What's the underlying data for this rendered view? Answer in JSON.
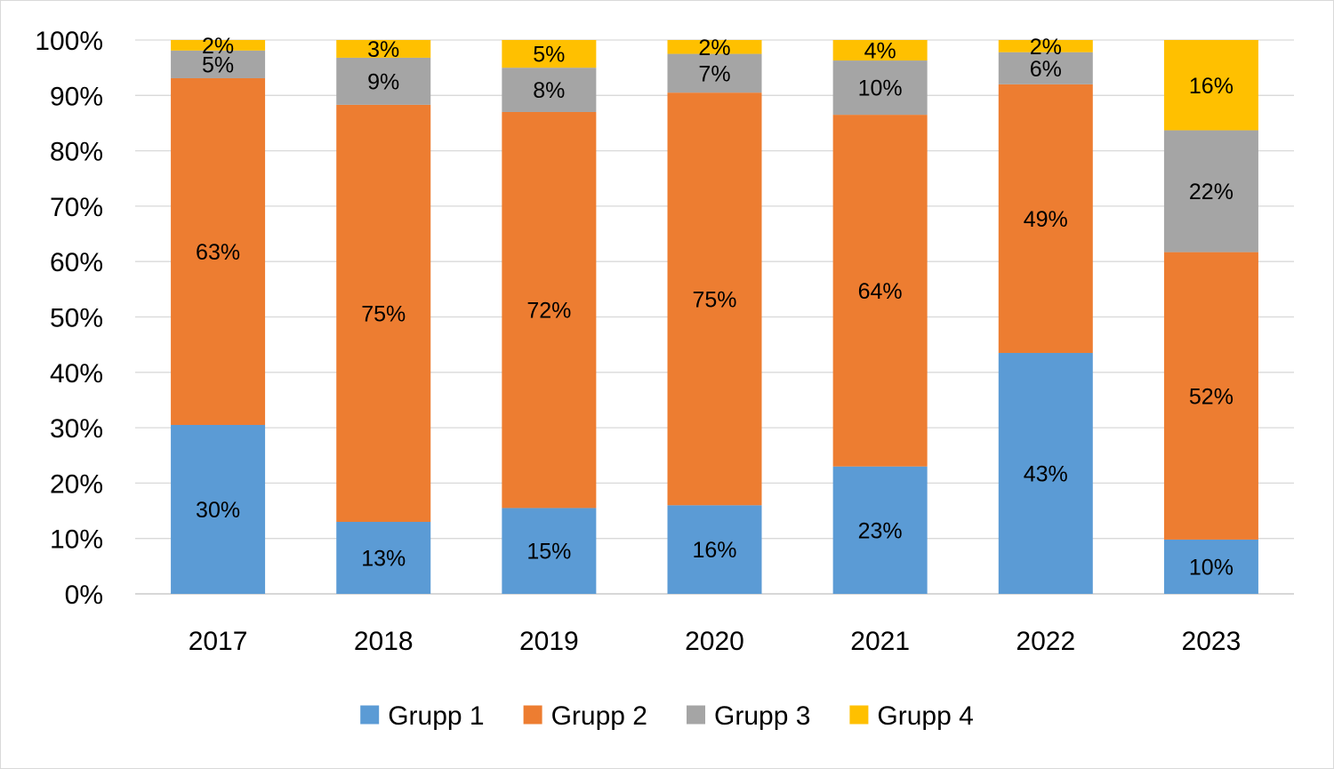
{
  "chart_data": {
    "type": "bar",
    "stacked": true,
    "categories": [
      "2017",
      "2018",
      "2019",
      "2020",
      "2021",
      "2022",
      "2023"
    ],
    "series": [
      {
        "name": "Grupp 1",
        "color": "#5B9BD5",
        "values": [
          30.5,
          13,
          15.5,
          16,
          23,
          43.5,
          9.8
        ],
        "labels": [
          "30%",
          "13%",
          "15%",
          "16%",
          "23%",
          "43%",
          "10%"
        ]
      },
      {
        "name": "Grupp 2",
        "color": "#ED7D31",
        "values": [
          62.6,
          75.3,
          71.5,
          74.5,
          63.5,
          48.5,
          51.9
        ],
        "labels": [
          "63%",
          "75%",
          "72%",
          "75%",
          "64%",
          "49%",
          "52%"
        ]
      },
      {
        "name": "Grupp 3",
        "color": "#A5A5A5",
        "values": [
          5,
          8.5,
          8,
          7,
          9.8,
          5.8,
          22
        ],
        "labels": [
          "5%",
          "9%",
          "8%",
          "7%",
          "10%",
          "6%",
          "22%"
        ]
      },
      {
        "name": "Grupp 4",
        "color": "#FFC000",
        "values": [
          1.9,
          3.2,
          5,
          2.5,
          3.7,
          2.2,
          16.3
        ],
        "labels": [
          "2%",
          "3%",
          "5%",
          "2%",
          "4%",
          "2%",
          "16%"
        ]
      }
    ],
    "ylim": [
      0,
      100
    ],
    "yticks": [
      "0%",
      "10%",
      "20%",
      "30%",
      "40%",
      "50%",
      "60%",
      "70%",
      "80%",
      "90%",
      "100%"
    ],
    "grid": true,
    "legend_position": "bottom"
  }
}
